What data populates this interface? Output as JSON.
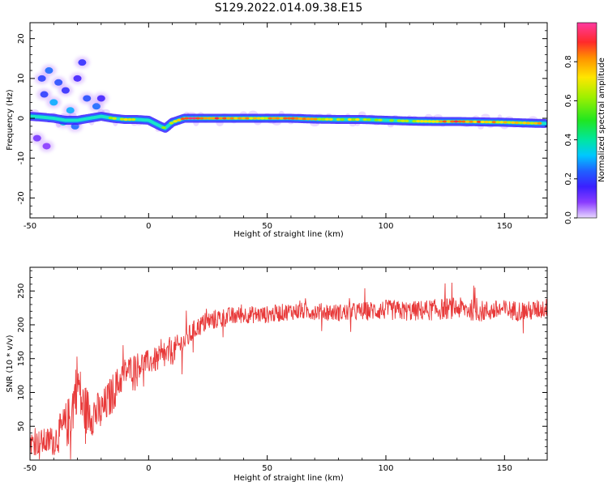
{
  "title": "S129.2022.014.09.38.E15",
  "colors": {
    "spectrum_main": "#18e6c8",
    "spectrum_edge": "#3a20ff",
    "spectrum_halo": "#b070ff",
    "spectrum_peak": "#e03030",
    "snr_line": "#e83a3a"
  },
  "chart_data": [
    {
      "type": "heatmap",
      "title": "S129.2022.014.09.38.E15",
      "xlabel": "Height of straight line (km)",
      "ylabel": "Frequency (Hz)",
      "xlim": [
        -50,
        168
      ],
      "ylim": [
        -25,
        24
      ],
      "xticks": [
        -50,
        0,
        50,
        100,
        150
      ],
      "yticks": [
        -20,
        -10,
        0,
        10,
        20
      ],
      "colorbar": {
        "label": "Normalized spectral amplitude",
        "range": [
          0.0,
          1.0
        ],
        "ticks": [
          0.0,
          0.2,
          0.4,
          0.6,
          0.8
        ],
        "colormap": "rainbow"
      },
      "ridge": {
        "x": [
          -50,
          -45,
          -40,
          -35,
          -30,
          -25,
          -20,
          -15,
          -10,
          -5,
          0,
          5,
          7,
          10,
          15,
          20,
          30,
          40,
          50,
          60,
          70,
          80,
          90,
          100,
          110,
          120,
          130,
          140,
          150,
          160,
          167
        ],
        "frequency_hz": [
          0.5,
          0.3,
          0.0,
          -0.5,
          -0.5,
          0.0,
          0.5,
          0.0,
          -0.3,
          -0.3,
          -0.5,
          -2.0,
          -2.5,
          -1.0,
          0.0,
          0.0,
          0.0,
          0.0,
          0.0,
          0.0,
          -0.2,
          -0.3,
          -0.3,
          -0.5,
          -0.7,
          -0.8,
          -0.8,
          -0.9,
          -1.0,
          -1.2,
          -1.3
        ],
        "amplitude": [
          0.5,
          0.45,
          0.4,
          0.45,
          0.55,
          0.5,
          0.5,
          0.6,
          0.65,
          0.6,
          0.55,
          0.5,
          0.55,
          0.6,
          0.85,
          0.9,
          0.85,
          0.75,
          0.75,
          0.8,
          0.75,
          0.65,
          0.65,
          0.6,
          0.65,
          0.75,
          0.85,
          0.8,
          0.75,
          0.7,
          0.85
        ]
      },
      "blobs": [
        {
          "x": -42,
          "f": 12,
          "amp": 0.25
        },
        {
          "x": -45,
          "f": 10,
          "amp": 0.2
        },
        {
          "x": -38,
          "f": 9,
          "amp": 0.22
        },
        {
          "x": -40,
          "f": 4,
          "amp": 0.3
        },
        {
          "x": -44,
          "f": 6,
          "amp": 0.2
        },
        {
          "x": -35,
          "f": 7,
          "amp": 0.18
        },
        {
          "x": -28,
          "f": 14,
          "amp": 0.18
        },
        {
          "x": -30,
          "f": 10,
          "amp": 0.15
        },
        {
          "x": -26,
          "f": 5,
          "amp": 0.22
        },
        {
          "x": -33,
          "f": 2,
          "amp": 0.3
        },
        {
          "x": -36,
          "f": -1,
          "amp": 0.35
        },
        {
          "x": -22,
          "f": 3,
          "amp": 0.25
        },
        {
          "x": -20,
          "f": 5,
          "amp": 0.15
        },
        {
          "x": -47,
          "f": -5,
          "amp": 0.1
        },
        {
          "x": -43,
          "f": -7,
          "amp": 0.08
        },
        {
          "x": -31,
          "f": -2,
          "amp": 0.25
        }
      ]
    },
    {
      "type": "line",
      "xlabel": "Height of straight line (km)",
      "ylabel": "SNR (10 * v/v)",
      "xlim": [
        -50,
        168
      ],
      "ylim": [
        0,
        285
      ],
      "xticks": [
        -50,
        0,
        50,
        100,
        150
      ],
      "yticks": [
        50,
        100,
        150,
        200,
        250
      ],
      "series": [
        {
          "x": [
            -50,
            -40,
            -33,
            -30,
            -28,
            -25,
            -20,
            -15,
            -10,
            -5,
            0,
            5,
            10,
            15,
            20,
            25,
            30,
            40,
            50,
            60,
            70,
            80,
            90,
            100,
            110,
            120,
            130,
            140,
            150,
            160,
            168
          ],
          "values": [
            25,
            28,
            60,
            120,
            80,
            70,
            70,
            100,
            130,
            140,
            145,
            150,
            160,
            175,
            195,
            205,
            210,
            215,
            215,
            220,
            220,
            218,
            220,
            222,
            220,
            222,
            225,
            220,
            222,
            220,
            225
          ],
          "noise_amplitude": [
            18,
            22,
            40,
            45,
            40,
            35,
            30,
            30,
            22,
            20,
            18,
            20,
            20,
            18,
            15,
            15,
            15,
            13,
            13,
            13,
            13,
            13,
            14,
            15,
            15,
            16,
            16,
            16,
            15,
            15,
            15
          ]
        }
      ]
    }
  ]
}
